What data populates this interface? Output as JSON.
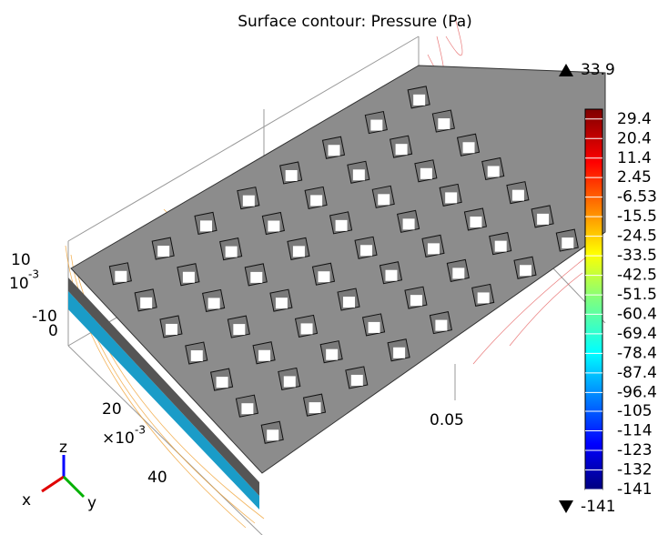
{
  "chart_data": {
    "type": "surface-contour",
    "title": "Surface contour: Pressure (Pa)",
    "clim": [
      -141,
      33.9
    ],
    "max_label": 33.9,
    "min_label": -141,
    "colorbar_ticks": [
      29.4,
      20.4,
      11.4,
      2.45,
      -6.53,
      -15.5,
      -24.5,
      -33.5,
      -42.5,
      -51.5,
      -60.4,
      -69.4,
      -78.4,
      -87.4,
      -96.4,
      -105,
      -114,
      -123,
      -132,
      -141
    ],
    "axes": {
      "z": {
        "ticks": [
          "10",
          "0",
          "-10"
        ],
        "exponent_base": "10",
        "exponent_power": "-3"
      },
      "y": {
        "ticks": [
          "20",
          "40"
        ],
        "multiplier_base": "×10",
        "multiplier_power": "-3"
      },
      "x": {
        "ticks": [
          "0.05"
        ]
      }
    },
    "triad": {
      "x": "x",
      "y": "y",
      "z": "z"
    }
  }
}
